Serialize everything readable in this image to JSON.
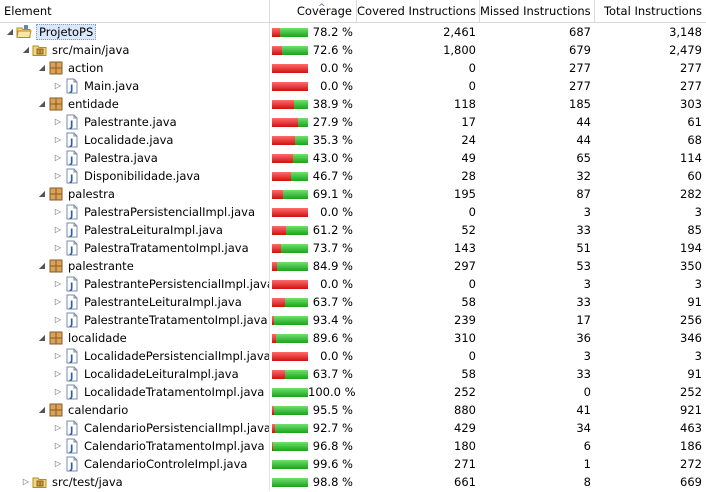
{
  "columns": {
    "element": "Element",
    "coverage": "Coverage",
    "covered": "Covered Instructions",
    "missed": "Missed Instructions",
    "total": "Total Instructions"
  },
  "colors": {
    "covered_bar": "#1aa31a",
    "missed_bar": "#d01010",
    "selection": "#dbe8fb"
  },
  "rows": [
    {
      "name": "ProjetoPS",
      "type": "project",
      "level": 0,
      "expander": "expanded",
      "coverage": "78.2 %",
      "ratio": 0.782,
      "covered": "2,461",
      "missed": "687",
      "total": "3,148"
    },
    {
      "name": "src/main/java",
      "type": "source-folder",
      "level": 1,
      "expander": "expanded",
      "coverage": "72.6 %",
      "ratio": 0.726,
      "covered": "1,800",
      "missed": "679",
      "total": "2,479"
    },
    {
      "name": "action",
      "type": "package",
      "level": 2,
      "expander": "expanded",
      "coverage": "0.0 %",
      "ratio": 0.0,
      "covered": "0",
      "missed": "277",
      "total": "277"
    },
    {
      "name": "Main.java",
      "type": "java-file",
      "level": 3,
      "expander": "collapsed",
      "coverage": "0.0 %",
      "ratio": 0.0,
      "covered": "0",
      "missed": "277",
      "total": "277"
    },
    {
      "name": "entidade",
      "type": "package",
      "level": 2,
      "expander": "expanded",
      "coverage": "38.9 %",
      "ratio": 0.389,
      "covered": "118",
      "missed": "185",
      "total": "303"
    },
    {
      "name": "Palestrante.java",
      "type": "java-file",
      "level": 3,
      "expander": "collapsed",
      "coverage": "27.9 %",
      "ratio": 0.279,
      "covered": "17",
      "missed": "44",
      "total": "61"
    },
    {
      "name": "Localidade.java",
      "type": "java-file",
      "level": 3,
      "expander": "collapsed",
      "coverage": "35.3 %",
      "ratio": 0.353,
      "covered": "24",
      "missed": "44",
      "total": "68"
    },
    {
      "name": "Palestra.java",
      "type": "java-file",
      "level": 3,
      "expander": "collapsed",
      "coverage": "43.0 %",
      "ratio": 0.43,
      "covered": "49",
      "missed": "65",
      "total": "114"
    },
    {
      "name": "Disponibilidade.java",
      "type": "java-file",
      "level": 3,
      "expander": "collapsed",
      "coverage": "46.7 %",
      "ratio": 0.467,
      "covered": "28",
      "missed": "32",
      "total": "60"
    },
    {
      "name": "palestra",
      "type": "package",
      "level": 2,
      "expander": "expanded",
      "coverage": "69.1 %",
      "ratio": 0.691,
      "covered": "195",
      "missed": "87",
      "total": "282"
    },
    {
      "name": "PalestraPersistencialImpl.java",
      "type": "java-file",
      "level": 3,
      "expander": "collapsed",
      "coverage": "0.0 %",
      "ratio": 0.0,
      "covered": "0",
      "missed": "3",
      "total": "3"
    },
    {
      "name": "PalestraLeituraImpl.java",
      "type": "java-file",
      "level": 3,
      "expander": "collapsed",
      "coverage": "61.2 %",
      "ratio": 0.612,
      "covered": "52",
      "missed": "33",
      "total": "85"
    },
    {
      "name": "PalestraTratamentoImpl.java",
      "type": "java-file",
      "level": 3,
      "expander": "collapsed",
      "coverage": "73.7 %",
      "ratio": 0.737,
      "covered": "143",
      "missed": "51",
      "total": "194"
    },
    {
      "name": "palestrante",
      "type": "package",
      "level": 2,
      "expander": "expanded",
      "coverage": "84.9 %",
      "ratio": 0.849,
      "covered": "297",
      "missed": "53",
      "total": "350"
    },
    {
      "name": "PalestrantePersistencialImpl.java",
      "type": "java-file",
      "level": 3,
      "expander": "collapsed",
      "coverage": "0.0 %",
      "ratio": 0.0,
      "covered": "0",
      "missed": "3",
      "total": "3"
    },
    {
      "name": "PalestranteLeituraImpl.java",
      "type": "java-file",
      "level": 3,
      "expander": "collapsed",
      "coverage": "63.7 %",
      "ratio": 0.637,
      "covered": "58",
      "missed": "33",
      "total": "91"
    },
    {
      "name": "PalestranteTratamentoImpl.java",
      "type": "java-file",
      "level": 3,
      "expander": "collapsed",
      "coverage": "93.4 %",
      "ratio": 0.934,
      "covered": "239",
      "missed": "17",
      "total": "256"
    },
    {
      "name": "localidade",
      "type": "package",
      "level": 2,
      "expander": "expanded",
      "coverage": "89.6 %",
      "ratio": 0.896,
      "covered": "310",
      "missed": "36",
      "total": "346"
    },
    {
      "name": "LocalidadePersistencialImpl.java",
      "type": "java-file",
      "level": 3,
      "expander": "collapsed",
      "coverage": "0.0 %",
      "ratio": 0.0,
      "covered": "0",
      "missed": "3",
      "total": "3"
    },
    {
      "name": "LocalidadeLeituraImpl.java",
      "type": "java-file",
      "level": 3,
      "expander": "collapsed",
      "coverage": "63.7 %",
      "ratio": 0.637,
      "covered": "58",
      "missed": "33",
      "total": "91"
    },
    {
      "name": "LocalidadeTratamentoImpl.java",
      "type": "java-file",
      "level": 3,
      "expander": "collapsed",
      "coverage": "100.0 %",
      "ratio": 1.0,
      "covered": "252",
      "missed": "0",
      "total": "252"
    },
    {
      "name": "calendario",
      "type": "package",
      "level": 2,
      "expander": "expanded",
      "coverage": "95.5 %",
      "ratio": 0.955,
      "covered": "880",
      "missed": "41",
      "total": "921"
    },
    {
      "name": "CalendarioPersistencialImpl.java",
      "type": "java-file",
      "level": 3,
      "expander": "collapsed",
      "coverage": "92.7 %",
      "ratio": 0.927,
      "covered": "429",
      "missed": "34",
      "total": "463"
    },
    {
      "name": "CalendarioTratamentoImpl.java",
      "type": "java-file",
      "level": 3,
      "expander": "collapsed",
      "coverage": "96.8 %",
      "ratio": 0.968,
      "covered": "180",
      "missed": "6",
      "total": "186"
    },
    {
      "name": "CalendarioControleImpl.java",
      "type": "java-file",
      "level": 3,
      "expander": "collapsed",
      "coverage": "99.6 %",
      "ratio": 0.996,
      "covered": "271",
      "missed": "1",
      "total": "272"
    },
    {
      "name": "src/test/java",
      "type": "source-folder",
      "level": 1,
      "expander": "collapsed",
      "coverage": "98.8 %",
      "ratio": 0.988,
      "covered": "661",
      "missed": "8",
      "total": "669"
    }
  ]
}
